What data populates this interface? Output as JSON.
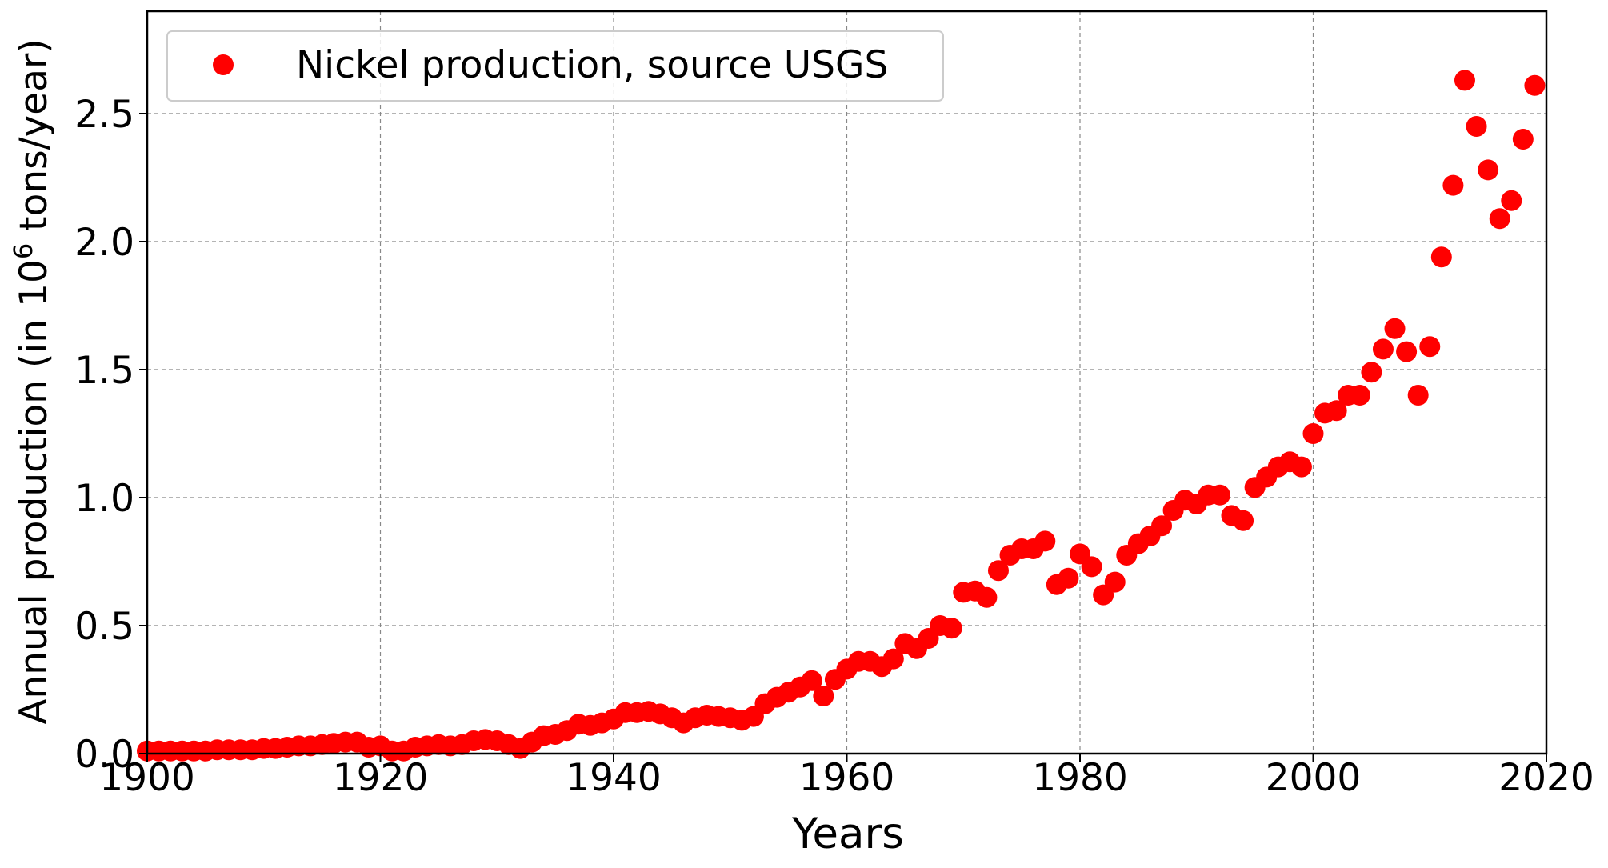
{
  "chart_data": {
    "type": "scatter",
    "xlabel": "Years",
    "ylabel": {
      "prefix": "Annual production (in 10",
      "superscript": "6",
      "suffix": " tons/year)"
    },
    "xlim": [
      1900,
      2020
    ],
    "ylim": [
      0.0,
      2.9
    ],
    "xticks": [
      1900,
      1920,
      1940,
      1960,
      1980,
      2000,
      2020
    ],
    "xtick_labels": [
      "1900",
      "1920",
      "1940",
      "1960",
      "1980",
      "2000",
      "2020"
    ],
    "yticks": [
      0.0,
      0.5,
      1.0,
      1.5,
      2.0,
      2.5
    ],
    "ytick_labels": [
      "0.0",
      "0.5",
      "1.0",
      "1.5",
      "2.0",
      "2.5"
    ],
    "grid": true,
    "legend_position": "top-left",
    "series": [
      {
        "name": "Nickel production, source USGS",
        "color": "#ff0000",
        "marker": "circle",
        "points": [
          {
            "x": 1900,
            "y": 0.01
          },
          {
            "x": 1901,
            "y": 0.01
          },
          {
            "x": 1902,
            "y": 0.01
          },
          {
            "x": 1903,
            "y": 0.01
          },
          {
            "x": 1904,
            "y": 0.01
          },
          {
            "x": 1905,
            "y": 0.01
          },
          {
            "x": 1906,
            "y": 0.015
          },
          {
            "x": 1907,
            "y": 0.015
          },
          {
            "x": 1908,
            "y": 0.015
          },
          {
            "x": 1909,
            "y": 0.015
          },
          {
            "x": 1910,
            "y": 0.02
          },
          {
            "x": 1911,
            "y": 0.02
          },
          {
            "x": 1912,
            "y": 0.025
          },
          {
            "x": 1913,
            "y": 0.03
          },
          {
            "x": 1914,
            "y": 0.03
          },
          {
            "x": 1915,
            "y": 0.035
          },
          {
            "x": 1916,
            "y": 0.04
          },
          {
            "x": 1917,
            "y": 0.045
          },
          {
            "x": 1918,
            "y": 0.045
          },
          {
            "x": 1919,
            "y": 0.025
          },
          {
            "x": 1920,
            "y": 0.03
          },
          {
            "x": 1921,
            "y": 0.01
          },
          {
            "x": 1922,
            "y": 0.01
          },
          {
            "x": 1923,
            "y": 0.025
          },
          {
            "x": 1924,
            "y": 0.03
          },
          {
            "x": 1925,
            "y": 0.035
          },
          {
            "x": 1926,
            "y": 0.03
          },
          {
            "x": 1927,
            "y": 0.035
          },
          {
            "x": 1928,
            "y": 0.05
          },
          {
            "x": 1929,
            "y": 0.055
          },
          {
            "x": 1930,
            "y": 0.05
          },
          {
            "x": 1931,
            "y": 0.035
          },
          {
            "x": 1932,
            "y": 0.02
          },
          {
            "x": 1933,
            "y": 0.045
          },
          {
            "x": 1934,
            "y": 0.07
          },
          {
            "x": 1935,
            "y": 0.075
          },
          {
            "x": 1936,
            "y": 0.09
          },
          {
            "x": 1937,
            "y": 0.115
          },
          {
            "x": 1938,
            "y": 0.11
          },
          {
            "x": 1939,
            "y": 0.12
          },
          {
            "x": 1940,
            "y": 0.135
          },
          {
            "x": 1941,
            "y": 0.16
          },
          {
            "x": 1942,
            "y": 0.16
          },
          {
            "x": 1943,
            "y": 0.165
          },
          {
            "x": 1944,
            "y": 0.155
          },
          {
            "x": 1945,
            "y": 0.14
          },
          {
            "x": 1946,
            "y": 0.12
          },
          {
            "x": 1947,
            "y": 0.14
          },
          {
            "x": 1948,
            "y": 0.15
          },
          {
            "x": 1949,
            "y": 0.145
          },
          {
            "x": 1950,
            "y": 0.14
          },
          {
            "x": 1951,
            "y": 0.13
          },
          {
            "x": 1952,
            "y": 0.145
          },
          {
            "x": 1953,
            "y": 0.195
          },
          {
            "x": 1954,
            "y": 0.22
          },
          {
            "x": 1955,
            "y": 0.24
          },
          {
            "x": 1956,
            "y": 0.26
          },
          {
            "x": 1957,
            "y": 0.285
          },
          {
            "x": 1958,
            "y": 0.225
          },
          {
            "x": 1959,
            "y": 0.29
          },
          {
            "x": 1960,
            "y": 0.33
          },
          {
            "x": 1961,
            "y": 0.36
          },
          {
            "x": 1962,
            "y": 0.36
          },
          {
            "x": 1963,
            "y": 0.34
          },
          {
            "x": 1964,
            "y": 0.37
          },
          {
            "x": 1965,
            "y": 0.43
          },
          {
            "x": 1966,
            "y": 0.41
          },
          {
            "x": 1967,
            "y": 0.45
          },
          {
            "x": 1968,
            "y": 0.5
          },
          {
            "x": 1969,
            "y": 0.49
          },
          {
            "x": 1970,
            "y": 0.63
          },
          {
            "x": 1971,
            "y": 0.635
          },
          {
            "x": 1972,
            "y": 0.61
          },
          {
            "x": 1973,
            "y": 0.715
          },
          {
            "x": 1974,
            "y": 0.775
          },
          {
            "x": 1975,
            "y": 0.8
          },
          {
            "x": 1976,
            "y": 0.8
          },
          {
            "x": 1977,
            "y": 0.83
          },
          {
            "x": 1978,
            "y": 0.66
          },
          {
            "x": 1979,
            "y": 0.685
          },
          {
            "x": 1980,
            "y": 0.78
          },
          {
            "x": 1981,
            "y": 0.73
          },
          {
            "x": 1982,
            "y": 0.62
          },
          {
            "x": 1983,
            "y": 0.67
          },
          {
            "x": 1984,
            "y": 0.775
          },
          {
            "x": 1985,
            "y": 0.82
          },
          {
            "x": 1986,
            "y": 0.85
          },
          {
            "x": 1987,
            "y": 0.89
          },
          {
            "x": 1988,
            "y": 0.95
          },
          {
            "x": 1989,
            "y": 0.99
          },
          {
            "x": 1990,
            "y": 0.975
          },
          {
            "x": 1991,
            "y": 1.01
          },
          {
            "x": 1992,
            "y": 1.01
          },
          {
            "x": 1993,
            "y": 0.93
          },
          {
            "x": 1994,
            "y": 0.91
          },
          {
            "x": 1995,
            "y": 1.04
          },
          {
            "x": 1996,
            "y": 1.08
          },
          {
            "x": 1997,
            "y": 1.12
          },
          {
            "x": 1998,
            "y": 1.14
          },
          {
            "x": 1999,
            "y": 1.12
          },
          {
            "x": 2000,
            "y": 1.25
          },
          {
            "x": 2001,
            "y": 1.33
          },
          {
            "x": 2002,
            "y": 1.34
          },
          {
            "x": 2003,
            "y": 1.4
          },
          {
            "x": 2004,
            "y": 1.4
          },
          {
            "x": 2005,
            "y": 1.49
          },
          {
            "x": 2006,
            "y": 1.58
          },
          {
            "x": 2007,
            "y": 1.66
          },
          {
            "x": 2008,
            "y": 1.57
          },
          {
            "x": 2009,
            "y": 1.4
          },
          {
            "x": 2010,
            "y": 1.59
          },
          {
            "x": 2011,
            "y": 1.94
          },
          {
            "x": 2012,
            "y": 2.22
          },
          {
            "x": 2013,
            "y": 2.63
          },
          {
            "x": 2014,
            "y": 2.45
          },
          {
            "x": 2015,
            "y": 2.28
          },
          {
            "x": 2016,
            "y": 2.09
          },
          {
            "x": 2017,
            "y": 2.16
          },
          {
            "x": 2018,
            "y": 2.4
          },
          {
            "x": 2019,
            "y": 2.61
          }
        ]
      }
    ]
  }
}
